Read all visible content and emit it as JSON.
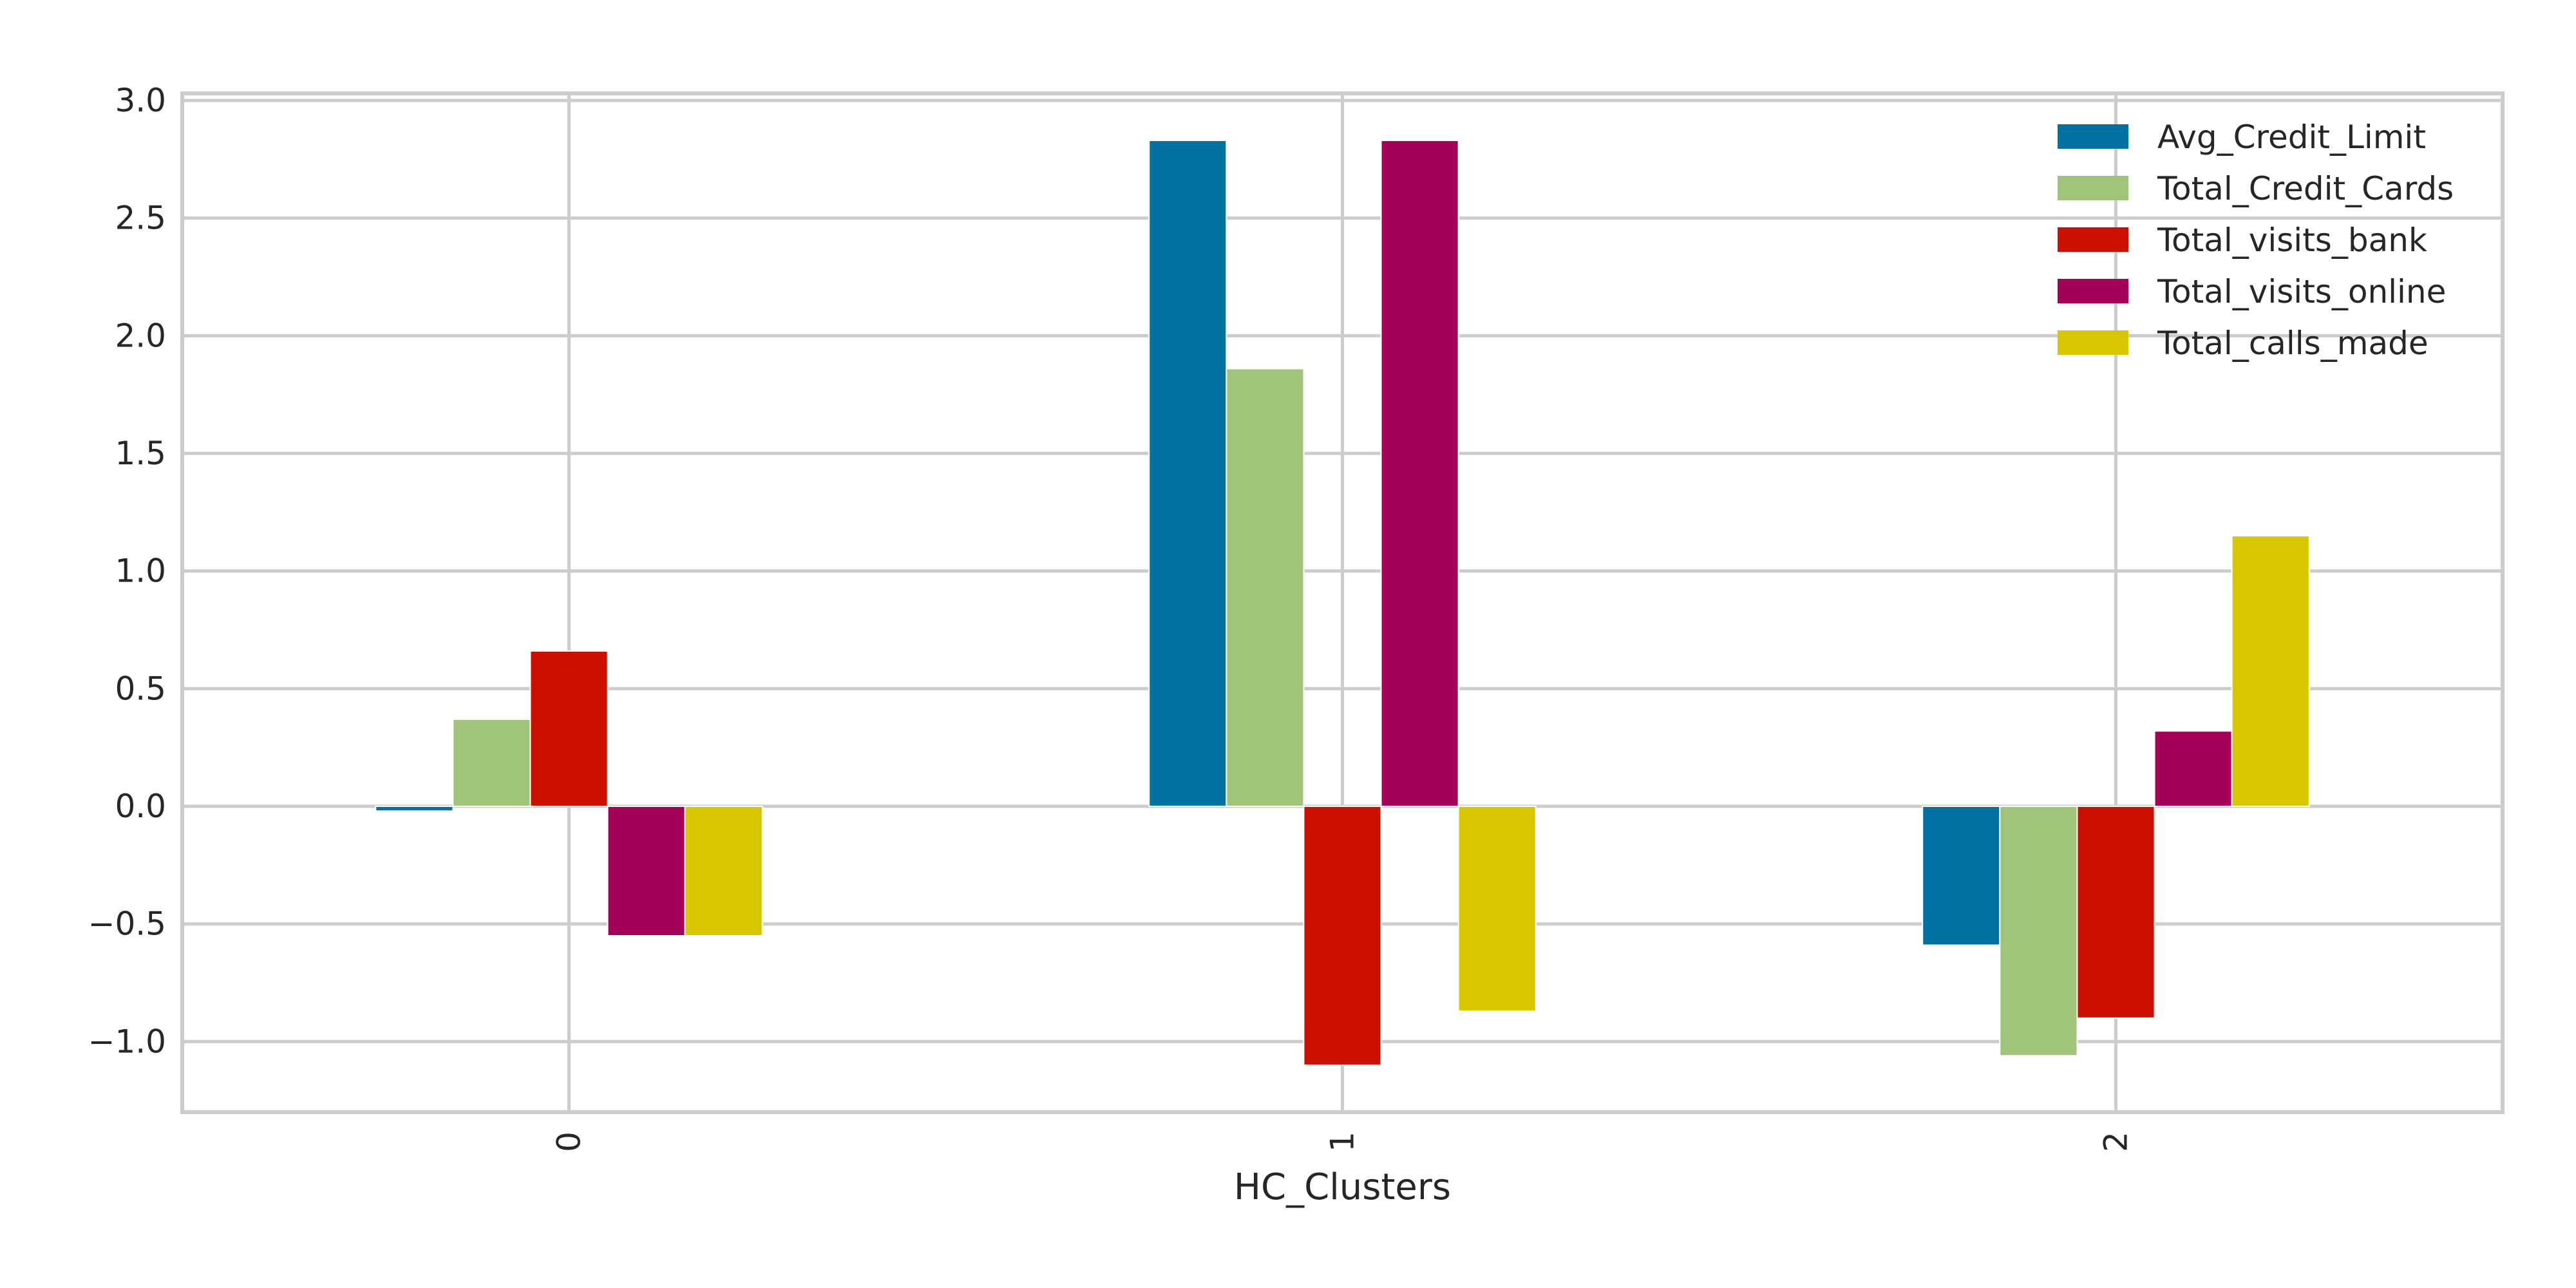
{
  "chart_data": {
    "type": "bar",
    "title": "",
    "xlabel": "HC_Clusters",
    "ylabel": "",
    "categories": [
      "0",
      "1",
      "2"
    ],
    "series": [
      {
        "name": "Avg_Credit_Limit",
        "color": "#0072A2",
        "values": [
          -0.02,
          2.83,
          -0.59
        ]
      },
      {
        "name": "Total_Credit_Cards",
        "color": "#9FC47A",
        "values": [
          0.37,
          1.86,
          -1.06
        ]
      },
      {
        "name": "Total_visits_bank",
        "color": "#CC1000",
        "values": [
          0.66,
          -1.1,
          -0.9
        ]
      },
      {
        "name": "Total_visits_online",
        "color": "#A4005A",
        "values": [
          -0.55,
          2.83,
          0.32
        ]
      },
      {
        "name": "Total_calls_made",
        "color": "#D8C700",
        "values": [
          -0.55,
          -0.87,
          1.15
        ]
      }
    ],
    "ylim": [
      -1.3,
      3.03
    ],
    "yticks": [
      "3.0",
      "2.5",
      "2.0",
      "1.5",
      "1.0",
      "0.5",
      "0.0",
      "−0.5",
      "−1.0"
    ],
    "ytick_values": [
      3.0,
      2.5,
      2.0,
      1.5,
      1.0,
      0.5,
      0.0,
      -0.5,
      -1.0
    ],
    "grid": true,
    "legend_position": "top-right",
    "xtick_rotation": "vertical"
  }
}
